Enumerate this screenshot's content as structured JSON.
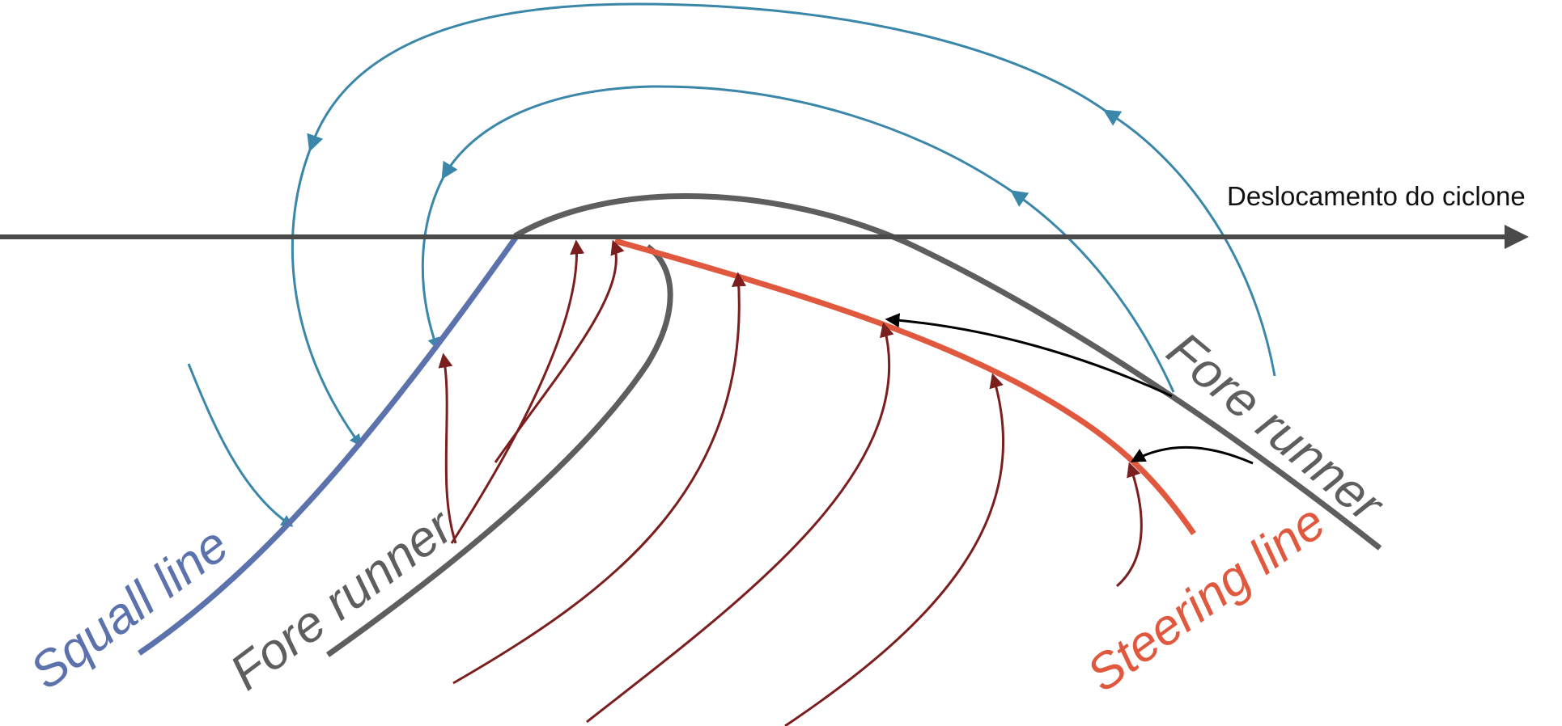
{
  "axis": {
    "label": "Deslocamento do ciclone"
  },
  "labels": {
    "squall_line": "Squall line",
    "fore_runner_left": "Fore runner",
    "fore_runner_right": "Fore runner",
    "steering_line": "Steering line"
  },
  "colors": {
    "axis": "#4a4a4a",
    "squall_line": "#5b72ad",
    "fore_runner": "#5e5e5e",
    "steering_line": "#e0593f",
    "blue_streamline": "#3a87aa",
    "red_streamline": "#7a1e1e",
    "black_arrow": "#000000"
  }
}
